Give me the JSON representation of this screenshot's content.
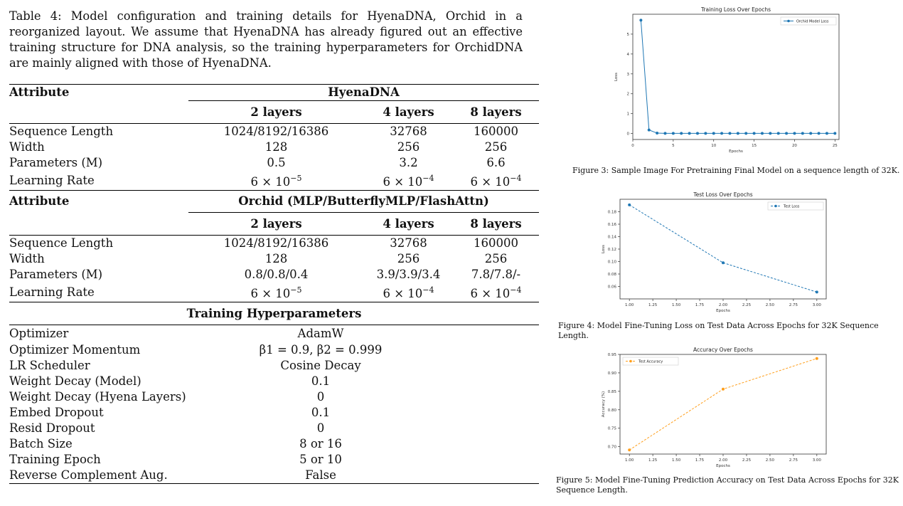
{
  "table": {
    "caption": "Table 4: Model configuration and training details for HyenaDNA, Orchid in a reorganized layout. We assume that HyenaDNA has already figured out an effective training structure for DNA analysis, so the training hyperparameters for OrchidDNA are mainly aligned with those of HyenaDNA.",
    "hyena": {
      "attr_header": "Attribute",
      "group_header": "HyenaDNA",
      "columns": [
        "2 layers",
        "4 layers",
        "8 layers"
      ],
      "rows": [
        {
          "label": "Sequence Length",
          "values": [
            "1024/8192/16386",
            "32768",
            "160000"
          ]
        },
        {
          "label": "Width",
          "values": [
            "128",
            "256",
            "256"
          ]
        },
        {
          "label": "Parameters (M)",
          "values": [
            "0.5",
            "3.2",
            "6.6"
          ]
        },
        {
          "label": "Learning Rate",
          "values": [
            "6 × 10",
            "6 × 10",
            "6 × 10"
          ],
          "exponents": [
            "−5",
            "−4",
            "−4"
          ]
        }
      ]
    },
    "orchid": {
      "attr_header": "Attribute",
      "group_header": "Orchid (MLP/ButterflyMLP/FlashAttn)",
      "columns": [
        "2 layers",
        "4 layers",
        "8 layers"
      ],
      "rows": [
        {
          "label": "Sequence Length",
          "values": [
            "1024/8192/16386",
            "32768",
            "160000"
          ]
        },
        {
          "label": "Width",
          "values": [
            "128",
            "256",
            "256"
          ]
        },
        {
          "label": "Parameters (M)",
          "values": [
            "0.8/0.8/0.4",
            "3.9/3.9/3.4",
            "7.8/7.8/-"
          ]
        },
        {
          "label": "Learning Rate",
          "values": [
            "6 × 10",
            "6 × 10",
            "6 × 10"
          ],
          "exponents": [
            "−5",
            "−4",
            "−4"
          ]
        }
      ]
    },
    "training": {
      "header": "Training Hyperparameters",
      "rows": [
        {
          "label": "Optimizer",
          "value": "AdamW"
        },
        {
          "label": "Optimizer Momentum",
          "value": "β1 = 0.9, β2 = 0.999"
        },
        {
          "label": "LR Scheduler",
          "value": "Cosine Decay"
        },
        {
          "label": "Weight Decay (Model)",
          "value": "0.1"
        },
        {
          "label": "Weight Decay (Hyena Layers)",
          "value": "0"
        },
        {
          "label": "Embed Dropout",
          "value": "0.1"
        },
        {
          "label": "Resid Dropout",
          "value": "0"
        },
        {
          "label": "Batch Size",
          "value": "8 or 16"
        },
        {
          "label": "Training Epoch",
          "value": "5 or 10"
        },
        {
          "label": "Reverse Complement Aug.",
          "value": "False"
        }
      ]
    }
  },
  "chart_data": [
    {
      "type": "line",
      "title": "Training Loss Over Epochs",
      "xlabel": "Epochs",
      "ylabel": "Loss",
      "xlim": [
        0,
        25.5
      ],
      "ylim": [
        -0.3,
        6.0
      ],
      "xticks": [
        "0",
        "5",
        "10",
        "15",
        "20",
        "25"
      ],
      "yticks": [
        "0",
        "1",
        "2",
        "3",
        "4",
        "5"
      ],
      "legend": "top-right",
      "series": [
        {
          "name": "Orchid Model Loss",
          "color": "#1f77b4",
          "style": "solid",
          "x": [
            1,
            2,
            3,
            4,
            5,
            6,
            7,
            8,
            9,
            10,
            11,
            12,
            13,
            14,
            15,
            16,
            17,
            18,
            19,
            20,
            21,
            22,
            23,
            24,
            25
          ],
          "y": [
            5.7,
            0.18,
            0.02,
            0.01,
            0.01,
            0.01,
            0.01,
            0.01,
            0.01,
            0.01,
            0.01,
            0.01,
            0.01,
            0.01,
            0.01,
            0.01,
            0.01,
            0.01,
            0.01,
            0.01,
            0.01,
            0.01,
            0.01,
            0.01,
            0.01
          ]
        }
      ],
      "caption": "Figure 3: Sample Image For Pretraining Final Model on a sequence length of 32K."
    },
    {
      "type": "line",
      "title": "Test Loss Over Epochs",
      "xlabel": "Epochs",
      "ylabel": "Loss",
      "xlim": [
        0.9,
        3.1
      ],
      "ylim": [
        0.04,
        0.2
      ],
      "xticks": [
        "1.00",
        "1.25",
        "1.50",
        "1.75",
        "2.00",
        "2.25",
        "2.50",
        "2.75",
        "3.00"
      ],
      "yticks": [
        "0.06",
        "0.08",
        "0.10",
        "0.12",
        "0.14",
        "0.16",
        "0.18"
      ],
      "legend": "top-right",
      "series": [
        {
          "name": "Test Loss",
          "color": "#1f77b4",
          "style": "dashed",
          "x": [
            1,
            2,
            3
          ],
          "y": [
            0.191,
            0.098,
            0.051
          ]
        }
      ],
      "caption": "Figure 4: Model Fine-Tuning Loss on Test Data Across Epochs for 32K Sequence Length."
    },
    {
      "type": "line",
      "title": "Accuracy Over Epochs",
      "xlabel": "Epochs",
      "ylabel": "Accuracy (%)",
      "xlim": [
        0.9,
        3.1
      ],
      "ylim": [
        0.68,
        0.95
      ],
      "xticks": [
        "1.00",
        "1.25",
        "1.50",
        "1.75",
        "2.00",
        "2.25",
        "2.50",
        "2.75",
        "3.00"
      ],
      "yticks": [
        "0.70",
        "0.75",
        "0.80",
        "0.85",
        "0.90",
        "0.95"
      ],
      "legend": "top-left",
      "series": [
        {
          "name": "Test Accuracy",
          "color": "#ff9f1c",
          "style": "dashed",
          "x": [
            1,
            2,
            3
          ],
          "y": [
            0.691,
            0.856,
            0.939
          ]
        }
      ],
      "caption": "Figure 5: Model Fine-Tuning Prediction Accuracy on Test Data Across Epochs for 32K Sequence Length."
    }
  ]
}
